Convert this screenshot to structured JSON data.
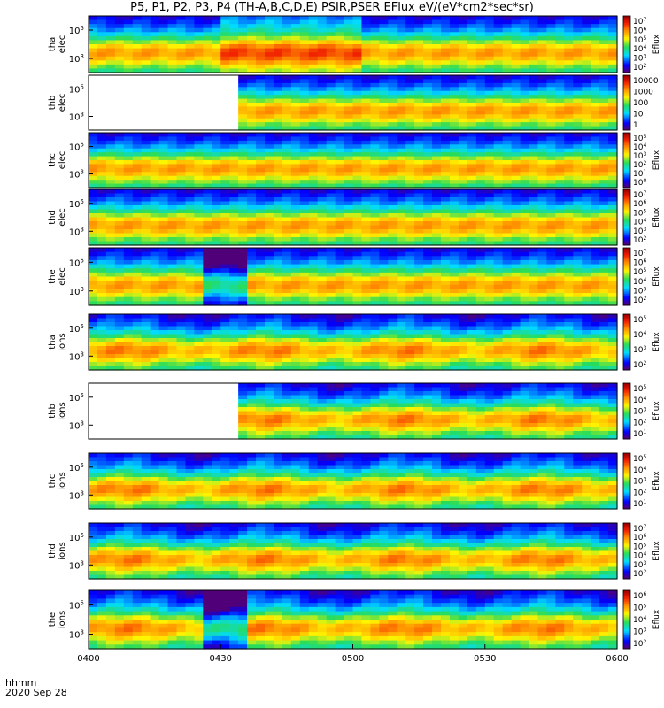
{
  "chart_data": {
    "type": "heatmap",
    "title": "P5, P1, P2, P3, P4 (TH-A,B,C,D,E) PSIR,PSER EFlux eV/(eV*cm2*sec*sr)",
    "x_tick_labels": [
      "0400",
      "0430",
      "0500",
      "0530",
      "0600"
    ],
    "x_range_hhmm": [
      "04:00",
      "06:00"
    ],
    "y_scale": "log",
    "time_label": "hhmm",
    "date_label": "2020 Sep 28",
    "colorbar_label": "Eflux",
    "panels": [
      {
        "label": [
          "tha",
          "elec"
        ],
        "y_ticks": [
          "10^5",
          "10^3"
        ],
        "colorbar_ticks": [
          "10^7",
          "10^6",
          "10^5",
          "10^4",
          "10^3",
          "10^2"
        ],
        "colorbar_label": "Eflux",
        "peak_band_min": [
          30,
          60
        ]
      },
      {
        "label": [
          "thb",
          "elec"
        ],
        "y_ticks": [
          "10^5",
          "10^3"
        ],
        "colorbar_ticks": [
          "10000",
          "1000",
          "100",
          "10",
          "1"
        ],
        "colorbar_label": "",
        "data_gap_min": [
          0,
          33
        ]
      },
      {
        "label": [
          "thc",
          "elec"
        ],
        "y_ticks": [
          "10^5",
          "10^3"
        ],
        "colorbar_ticks": [
          "10^5",
          "10^4",
          "10^3",
          "10^2",
          "10^1",
          "10^0"
        ],
        "colorbar_label": "Eflux"
      },
      {
        "label": [
          "thd",
          "elec"
        ],
        "y_ticks": [
          "10^5",
          "10^3"
        ],
        "colorbar_ticks": [
          "10^7",
          "10^6",
          "10^5",
          "10^4",
          "10^3",
          "10^2"
        ],
        "colorbar_label": "Eflux"
      },
      {
        "label": [
          "the",
          "elec"
        ],
        "y_ticks": [
          "10^5",
          "10^3"
        ],
        "colorbar_ticks": [
          "10^7",
          "10^6",
          "10^5",
          "10^4",
          "10^3",
          "10^2"
        ],
        "colorbar_label": "Eflux",
        "low_flux_min": [
          25,
          35
        ]
      },
      {
        "label": [
          "tha",
          "ions"
        ],
        "y_ticks": [
          "10^5",
          "10^3"
        ],
        "colorbar_ticks": [
          "10^5",
          "10^4",
          "10^3",
          "10^2"
        ],
        "colorbar_label": "Eflux"
      },
      {
        "label": [
          "thb",
          "ions"
        ],
        "y_ticks": [
          "10^5",
          "10^3"
        ],
        "colorbar_ticks": [
          "10^5",
          "10^4",
          "10^3",
          "10^2",
          "10^1"
        ],
        "colorbar_label": "Eflux",
        "data_gap_min": [
          0,
          33
        ]
      },
      {
        "label": [
          "thc",
          "ions"
        ],
        "y_ticks": [
          "10^5",
          "10^3"
        ],
        "colorbar_ticks": [
          "10^5",
          "10^4",
          "10^3",
          "10^2",
          "10^1"
        ],
        "colorbar_label": "Eflux"
      },
      {
        "label": [
          "thd",
          "ions"
        ],
        "y_ticks": [
          "10^5",
          "10^3"
        ],
        "colorbar_ticks": [
          "10^7",
          "10^6",
          "10^5",
          "10^4",
          "10^3",
          "10^2"
        ],
        "colorbar_label": "Eflux"
      },
      {
        "label": [
          "the",
          "ions"
        ],
        "y_ticks": [
          "10^5",
          "10^3"
        ],
        "colorbar_ticks": [
          "10^6",
          "10^5",
          "10^4",
          "10^3",
          "10^2"
        ],
        "colorbar_label": "Eflux",
        "low_flux_min": [
          25,
          35
        ]
      }
    ]
  }
}
